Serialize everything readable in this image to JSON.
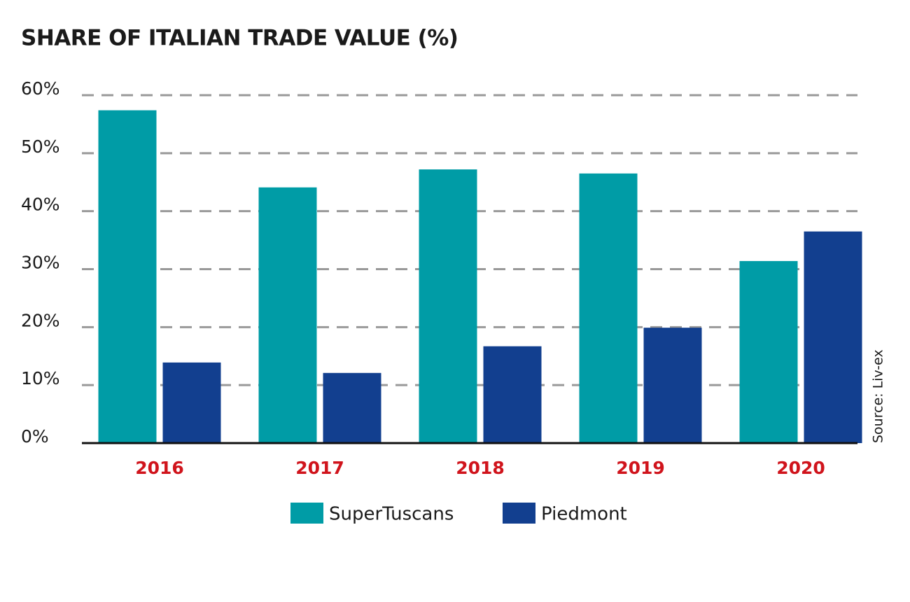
{
  "chart_data": {
    "type": "bar",
    "title": "SHARE OF ITALIAN TRADE VALUE (%)",
    "categories": [
      "2016",
      "2017",
      "2018",
      "2019",
      "2020"
    ],
    "series": [
      {
        "name": "SuperTuscans",
        "color": "#009ca6",
        "values": [
          57.4,
          44.1,
          47.2,
          46.5,
          31.4
        ]
      },
      {
        "name": "Piedmont",
        "color": "#123f8f",
        "values": [
          13.9,
          12.1,
          16.7,
          19.9,
          36.5
        ]
      }
    ],
    "ylim": [
      0,
      60
    ],
    "yticks": [
      {
        "value": 0,
        "label": "0%"
      },
      {
        "value": 10,
        "label": "10%"
      },
      {
        "value": 20,
        "label": "20%"
      },
      {
        "value": 30,
        "label": "30%"
      },
      {
        "value": 40,
        "label": "40%"
      },
      {
        "value": 50,
        "label": "50%"
      },
      {
        "value": 60,
        "label": "60%"
      }
    ],
    "grid": true,
    "source": "Source: Liv-ex"
  }
}
